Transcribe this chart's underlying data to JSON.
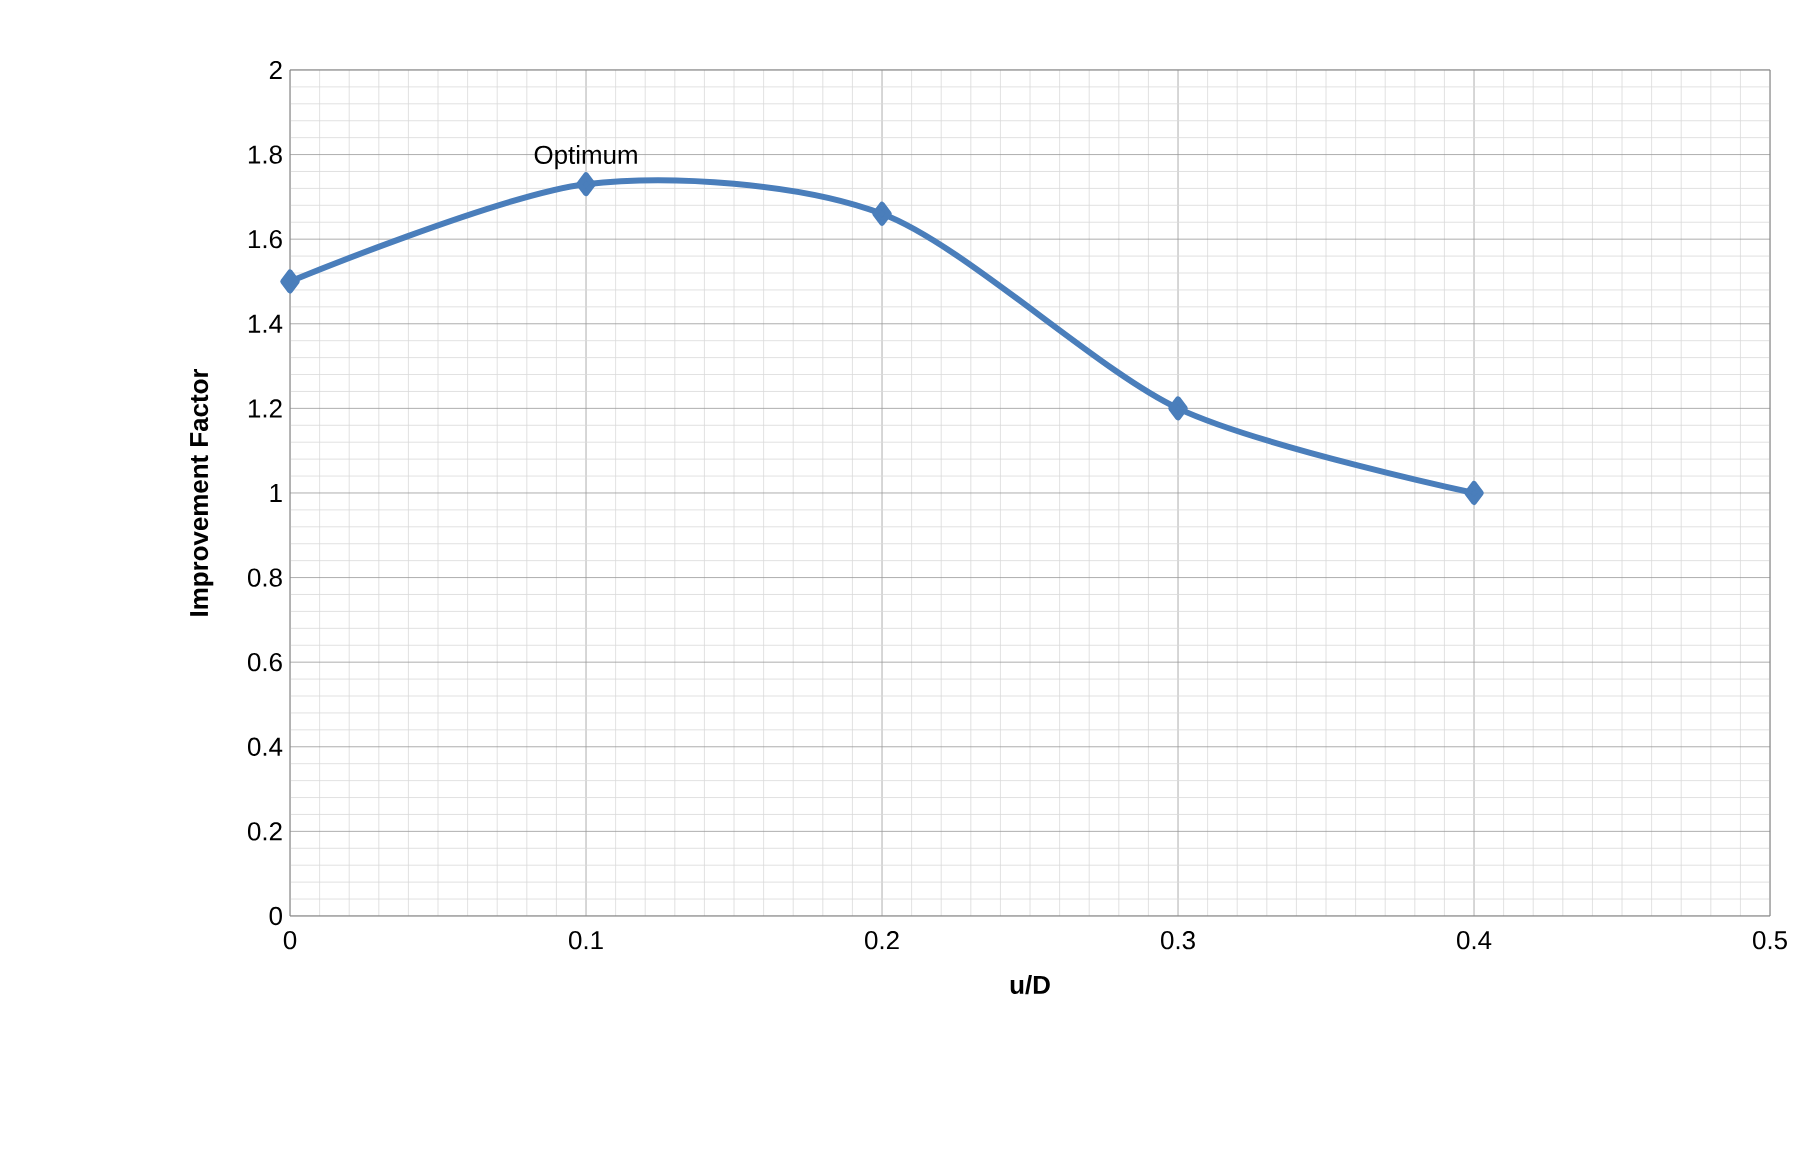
{
  "chart_data": {
    "type": "line",
    "xlabel": "u/D",
    "ylabel": "Improvement Factor",
    "x": [
      0,
      0.1,
      0.2,
      0.3,
      0.4
    ],
    "series": [
      {
        "color": "#4a7ebb",
        "values": [
          1.5,
          1.73,
          1.66,
          1.2,
          1.0
        ]
      }
    ],
    "xlim": [
      0,
      0.5
    ],
    "xticks": [
      0,
      0.1,
      0.2,
      0.3,
      0.4,
      0.5
    ],
    "ylim": [
      0,
      2
    ],
    "yticks": [
      0,
      0.2,
      0.4,
      0.6,
      0.8,
      1,
      1.2,
      1.4,
      1.6,
      1.8,
      2
    ],
    "grid": true,
    "marker": "diamond",
    "line_style": "solid",
    "annotations": [
      {
        "text": "Optimum",
        "x": 0.1,
        "y": 1.73
      }
    ]
  }
}
